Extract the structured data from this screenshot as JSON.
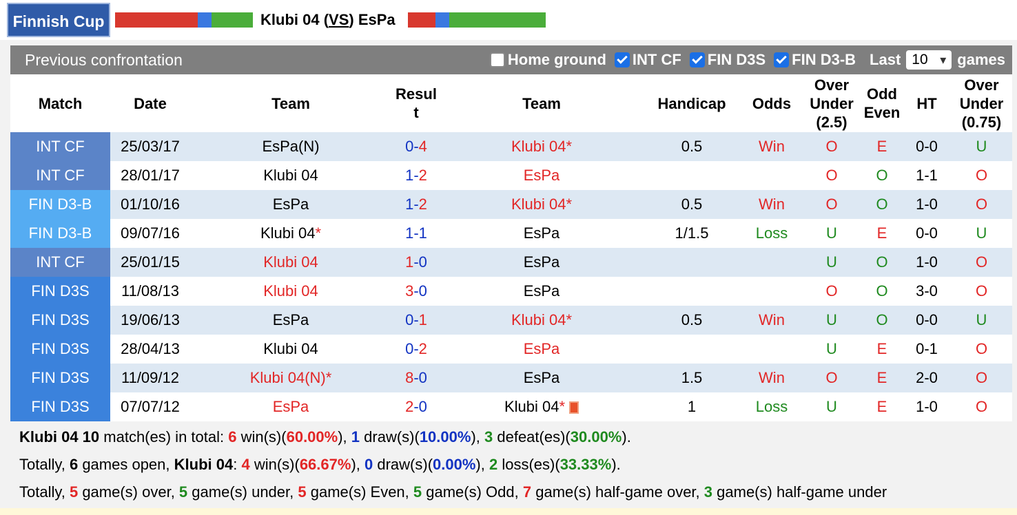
{
  "header": {
    "competition": "Finnish Cup",
    "home_team": "Klubi 04",
    "vs_label": "VS",
    "away_team": "EsPa",
    "home_bar": [
      {
        "color": "#d8382e",
        "share": 0.6
      },
      {
        "color": "#3a78e0",
        "share": 0.1
      },
      {
        "color": "#4aad3a",
        "share": 0.3
      }
    ],
    "away_bar": [
      {
        "color": "#d8382e",
        "share": 0.2
      },
      {
        "color": "#3a78e0",
        "share": 0.1
      },
      {
        "color": "#4aad3a",
        "share": 0.7
      }
    ]
  },
  "panel": {
    "title": "Previous confrontation",
    "filters": [
      {
        "label": "Home ground",
        "checked": false
      },
      {
        "label": "INT CF",
        "checked": true
      },
      {
        "label": "FIN D3S",
        "checked": true
      },
      {
        "label": "FIN D3-B",
        "checked": true
      }
    ],
    "last_label": "Last",
    "last_value": "10",
    "games_label": "games"
  },
  "columns": [
    "Match",
    "Date",
    "Team",
    "Resul t",
    "Team",
    "Handicap",
    "Odds",
    "Over Under (2.5)",
    "Odd Even",
    "HT",
    "Over Under (0.75)"
  ],
  "comp_colors": {
    "INT CF": "#5b84c8",
    "FIN D3-B": "#55acf2",
    "FIN D3S": "#3b82dc"
  },
  "rows": [
    {
      "comp": "INT CF",
      "date": "25/03/17",
      "home": "EsPa(N)",
      "home_star": "",
      "home_red": false,
      "score_home": "0",
      "score_away": "4",
      "home_goals_color": "b",
      "away_goals_color": "r",
      "away": "Klubi 04",
      "away_star": "*",
      "away_red": true,
      "card": false,
      "handicap": "0.5",
      "odds": "Win",
      "ou": "O",
      "oe": "E",
      "ht": "0-0",
      "ou2": "U"
    },
    {
      "comp": "INT CF",
      "date": "28/01/17",
      "home": "Klubi 04",
      "home_star": "",
      "home_red": false,
      "score_home": "1",
      "score_away": "2",
      "home_goals_color": "b",
      "away_goals_color": "r",
      "away": "EsPa",
      "away_star": "",
      "away_red": true,
      "card": false,
      "handicap": "",
      "odds": "",
      "ou": "O",
      "oe": "O",
      "ht": "1-1",
      "ou2": "O"
    },
    {
      "comp": "FIN D3-B",
      "date": "01/10/16",
      "home": "EsPa",
      "home_star": "",
      "home_red": false,
      "score_home": "1",
      "score_away": "2",
      "home_goals_color": "b",
      "away_goals_color": "r",
      "away": "Klubi 04",
      "away_star": "*",
      "away_red": true,
      "card": false,
      "handicap": "0.5",
      "odds": "Win",
      "ou": "O",
      "oe": "O",
      "ht": "1-0",
      "ou2": "O"
    },
    {
      "comp": "FIN D3-B",
      "date": "09/07/16",
      "home": "Klubi 04",
      "home_star": "*",
      "home_red": false,
      "score_home": "1",
      "score_away": "1",
      "home_goals_color": "b",
      "away_goals_color": "b",
      "away": "EsPa",
      "away_star": "",
      "away_red": false,
      "card": false,
      "handicap": "1/1.5",
      "odds": "Loss",
      "ou": "U",
      "oe": "E",
      "ht": "0-0",
      "ou2": "U"
    },
    {
      "comp": "INT CF",
      "date": "25/01/15",
      "home": "Klubi 04",
      "home_star": "",
      "home_red": true,
      "score_home": "1",
      "score_away": "0",
      "home_goals_color": "r",
      "away_goals_color": "b",
      "away": "EsPa",
      "away_star": "",
      "away_red": false,
      "card": false,
      "handicap": "",
      "odds": "",
      "ou": "U",
      "oe": "O",
      "ht": "1-0",
      "ou2": "O"
    },
    {
      "comp": "FIN D3S",
      "date": "11/08/13",
      "home": "Klubi 04",
      "home_star": "",
      "home_red": true,
      "score_home": "3",
      "score_away": "0",
      "home_goals_color": "r",
      "away_goals_color": "b",
      "away": "EsPa",
      "away_star": "",
      "away_red": false,
      "card": false,
      "handicap": "",
      "odds": "",
      "ou": "O",
      "oe": "O",
      "ht": "3-0",
      "ou2": "O"
    },
    {
      "comp": "FIN D3S",
      "date": "19/06/13",
      "home": "EsPa",
      "home_star": "",
      "home_red": false,
      "score_home": "0",
      "score_away": "1",
      "home_goals_color": "b",
      "away_goals_color": "r",
      "away": "Klubi 04",
      "away_star": "*",
      "away_red": true,
      "card": false,
      "handicap": "0.5",
      "odds": "Win",
      "ou": "U",
      "oe": "O",
      "ht": "0-0",
      "ou2": "U"
    },
    {
      "comp": "FIN D3S",
      "date": "28/04/13",
      "home": "Klubi 04",
      "home_star": "",
      "home_red": false,
      "score_home": "0",
      "score_away": "2",
      "home_goals_color": "b",
      "away_goals_color": "r",
      "away": "EsPa",
      "away_star": "",
      "away_red": true,
      "card": false,
      "handicap": "",
      "odds": "",
      "ou": "U",
      "oe": "E",
      "ht": "0-1",
      "ou2": "O"
    },
    {
      "comp": "FIN D3S",
      "date": "11/09/12",
      "home": "Klubi 04(N)",
      "home_star": "*",
      "home_red": true,
      "score_home": "8",
      "score_away": "0",
      "home_goals_color": "r",
      "away_goals_color": "b",
      "away": "EsPa",
      "away_star": "",
      "away_red": false,
      "card": false,
      "handicap": "1.5",
      "odds": "Win",
      "ou": "O",
      "oe": "E",
      "ht": "2-0",
      "ou2": "O"
    },
    {
      "comp": "FIN D3S",
      "date": "07/07/12",
      "home": "EsPa",
      "home_star": "",
      "home_red": true,
      "score_home": "2",
      "score_away": "0",
      "home_goals_color": "r",
      "away_goals_color": "b",
      "away": "Klubi 04",
      "away_star": "*",
      "away_red": false,
      "card": true,
      "handicap": "1",
      "odds": "Loss",
      "ou": "U",
      "oe": "E",
      "ht": "1-0",
      "ou2": "O"
    }
  ],
  "summary": [
    [
      {
        "t": "Klubi 04 10",
        "c": "",
        "b": true
      },
      {
        "t": " match(es) in total: ",
        "c": "",
        "b": false
      },
      {
        "t": "6",
        "c": "r",
        "b": true
      },
      {
        "t": " win(s)(",
        "c": "",
        "b": false
      },
      {
        "t": "60.00%",
        "c": "r",
        "b": true
      },
      {
        "t": "), ",
        "c": "",
        "b": false
      },
      {
        "t": "1",
        "c": "b",
        "b": true
      },
      {
        "t": " draw(s)(",
        "c": "",
        "b": false
      },
      {
        "t": "10.00%",
        "c": "b",
        "b": true
      },
      {
        "t": "), ",
        "c": "",
        "b": false
      },
      {
        "t": "3",
        "c": "g",
        "b": true
      },
      {
        "t": " defeat(es)(",
        "c": "",
        "b": false
      },
      {
        "t": "30.00%",
        "c": "g",
        "b": true
      },
      {
        "t": ").",
        "c": "",
        "b": false
      }
    ],
    [
      {
        "t": "Totally, ",
        "c": "",
        "b": false
      },
      {
        "t": "6",
        "c": "",
        "b": true
      },
      {
        "t": " games open, ",
        "c": "",
        "b": false
      },
      {
        "t": "Klubi 04",
        "c": "",
        "b": true
      },
      {
        "t": ": ",
        "c": "",
        "b": false
      },
      {
        "t": "4",
        "c": "r",
        "b": true
      },
      {
        "t": " win(s)(",
        "c": "",
        "b": false
      },
      {
        "t": "66.67%",
        "c": "r",
        "b": true
      },
      {
        "t": "), ",
        "c": "",
        "b": false
      },
      {
        "t": "0",
        "c": "b",
        "b": true
      },
      {
        "t": " draw(s)(",
        "c": "",
        "b": false
      },
      {
        "t": "0.00%",
        "c": "b",
        "b": true
      },
      {
        "t": "), ",
        "c": "",
        "b": false
      },
      {
        "t": "2",
        "c": "g",
        "b": true
      },
      {
        "t": " loss(es)(",
        "c": "",
        "b": false
      },
      {
        "t": "33.33%",
        "c": "g",
        "b": true
      },
      {
        "t": ").",
        "c": "",
        "b": false
      }
    ],
    [
      {
        "t": "Totally, ",
        "c": "",
        "b": false
      },
      {
        "t": "5",
        "c": "r",
        "b": true
      },
      {
        "t": " game(s) over, ",
        "c": "",
        "b": false
      },
      {
        "t": "5",
        "c": "g",
        "b": true
      },
      {
        "t": " game(s) under, ",
        "c": "",
        "b": false
      },
      {
        "t": "5",
        "c": "r",
        "b": true
      },
      {
        "t": " game(s) Even, ",
        "c": "",
        "b": false
      },
      {
        "t": "5",
        "c": "g",
        "b": true
      },
      {
        "t": " game(s) Odd, ",
        "c": "",
        "b": false
      },
      {
        "t": "7",
        "c": "r",
        "b": true
      },
      {
        "t": " game(s) half-game over, ",
        "c": "",
        "b": false
      },
      {
        "t": "3",
        "c": "g",
        "b": true
      },
      {
        "t": " game(s) half-game under",
        "c": "",
        "b": false
      }
    ]
  ]
}
